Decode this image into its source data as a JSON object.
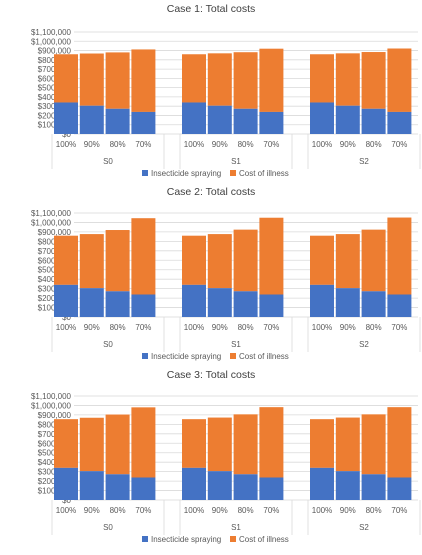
{
  "chart_data": [
    {
      "type": "bar",
      "stacked": true,
      "title": "Case 1: Total costs",
      "groups": [
        "S0",
        "S1",
        "S2"
      ],
      "categories": [
        "100%",
        "90%",
        "80%",
        "70%"
      ],
      "yticks": [
        "$0",
        "$100,000",
        "$200,000",
        "$300,000",
        "$400,000",
        "$500,000",
        "$600,000",
        "$700,000",
        "$800,000",
        "$900,000",
        "$1,000,000",
        "$1,100,000"
      ],
      "ylim": [
        0,
        1100000
      ],
      "grid": true,
      "legend_position": "bottom",
      "series": [
        {
          "name": "Insecticide spraying",
          "color": "#4472C4",
          "values": [
            [
              340000,
              305000,
              272000,
              238000
            ],
            [
              340000,
              305000,
              272000,
              238000
            ],
            [
              340000,
              305000,
              272000,
              238000
            ]
          ]
        },
        {
          "name": "Cost of illness",
          "color": "#ED7D31",
          "values": [
            [
              520000,
              563000,
              608000,
              674000
            ],
            [
              520000,
              565000,
              610000,
              682000
            ],
            [
              520000,
              565000,
              612000,
              684000
            ]
          ]
        }
      ]
    },
    {
      "type": "bar",
      "stacked": true,
      "title": "Case 2: Total costs",
      "groups": [
        "S0",
        "S1",
        "S2"
      ],
      "categories": [
        "100%",
        "90%",
        "80%",
        "70%"
      ],
      "yticks": [
        "$0",
        "$100,000",
        "$200,000",
        "$300,000",
        "$400,000",
        "$500,000",
        "$600,000",
        "$700,000",
        "$800,000",
        "$900,000",
        "$1,000,000",
        "$1,100,000"
      ],
      "ylim": [
        0,
        1100000
      ],
      "grid": true,
      "legend_position": "bottom",
      "series": [
        {
          "name": "Insecticide spraying",
          "color": "#4472C4",
          "values": [
            [
              340000,
              305000,
              272000,
              238000
            ],
            [
              340000,
              305000,
              272000,
              238000
            ],
            [
              340000,
              305000,
              272000,
              238000
            ]
          ]
        },
        {
          "name": "Cost of illness",
          "color": "#ED7D31",
          "values": [
            [
              520000,
              572000,
              648000,
              807000
            ],
            [
              520000,
              572000,
              652000,
              812000
            ],
            [
              520000,
              572000,
              652000,
              814000
            ]
          ]
        }
      ]
    },
    {
      "type": "bar",
      "stacked": true,
      "title": "Case 3: Total costs",
      "groups": [
        "S0",
        "S1",
        "S2"
      ],
      "categories": [
        "100%",
        "90%",
        "80%",
        "70%"
      ],
      "yticks": [
        "$0",
        "$100,000",
        "$200,000",
        "$300,000",
        "$400,000",
        "$500,000",
        "$600,000",
        "$700,000",
        "$800,000",
        "$900,000",
        "$1,000,000",
        "$1,100,000"
      ],
      "ylim": [
        0,
        1100000
      ],
      "grid": true,
      "legend_position": "bottom",
      "series": [
        {
          "name": "Insecticide spraying",
          "color": "#4472C4",
          "values": [
            [
              340000,
              305000,
              272000,
              238000
            ],
            [
              340000,
              305000,
              272000,
              238000
            ],
            [
              340000,
              305000,
              272000,
              238000
            ]
          ]
        },
        {
          "name": "Cost of illness",
          "color": "#ED7D31",
          "values": [
            [
              515000,
              565000,
              632000,
              742000
            ],
            [
              515000,
              567000,
              634000,
              744000
            ],
            [
              515000,
              567000,
              634000,
              744000
            ]
          ]
        }
      ]
    }
  ]
}
